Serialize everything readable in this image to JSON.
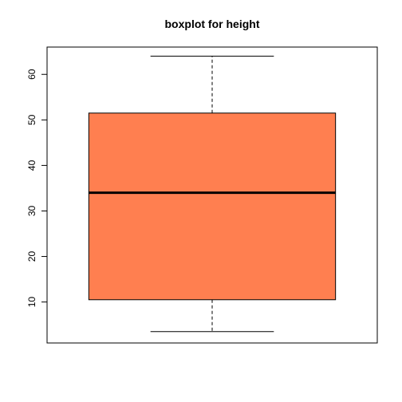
{
  "chart_data": {
    "type": "boxplot",
    "title": "boxplot for height",
    "xlabel": "",
    "ylabel": "",
    "ylim": [
      1,
      66
    ],
    "y_ticks": [
      10,
      20,
      30,
      40,
      50,
      60
    ],
    "box_color": "#FF7F50",
    "series": [
      {
        "whisker_low": 3.5,
        "q1": 10.5,
        "median": 34,
        "q3": 51.5,
        "whisker_high": 64
      }
    ]
  }
}
